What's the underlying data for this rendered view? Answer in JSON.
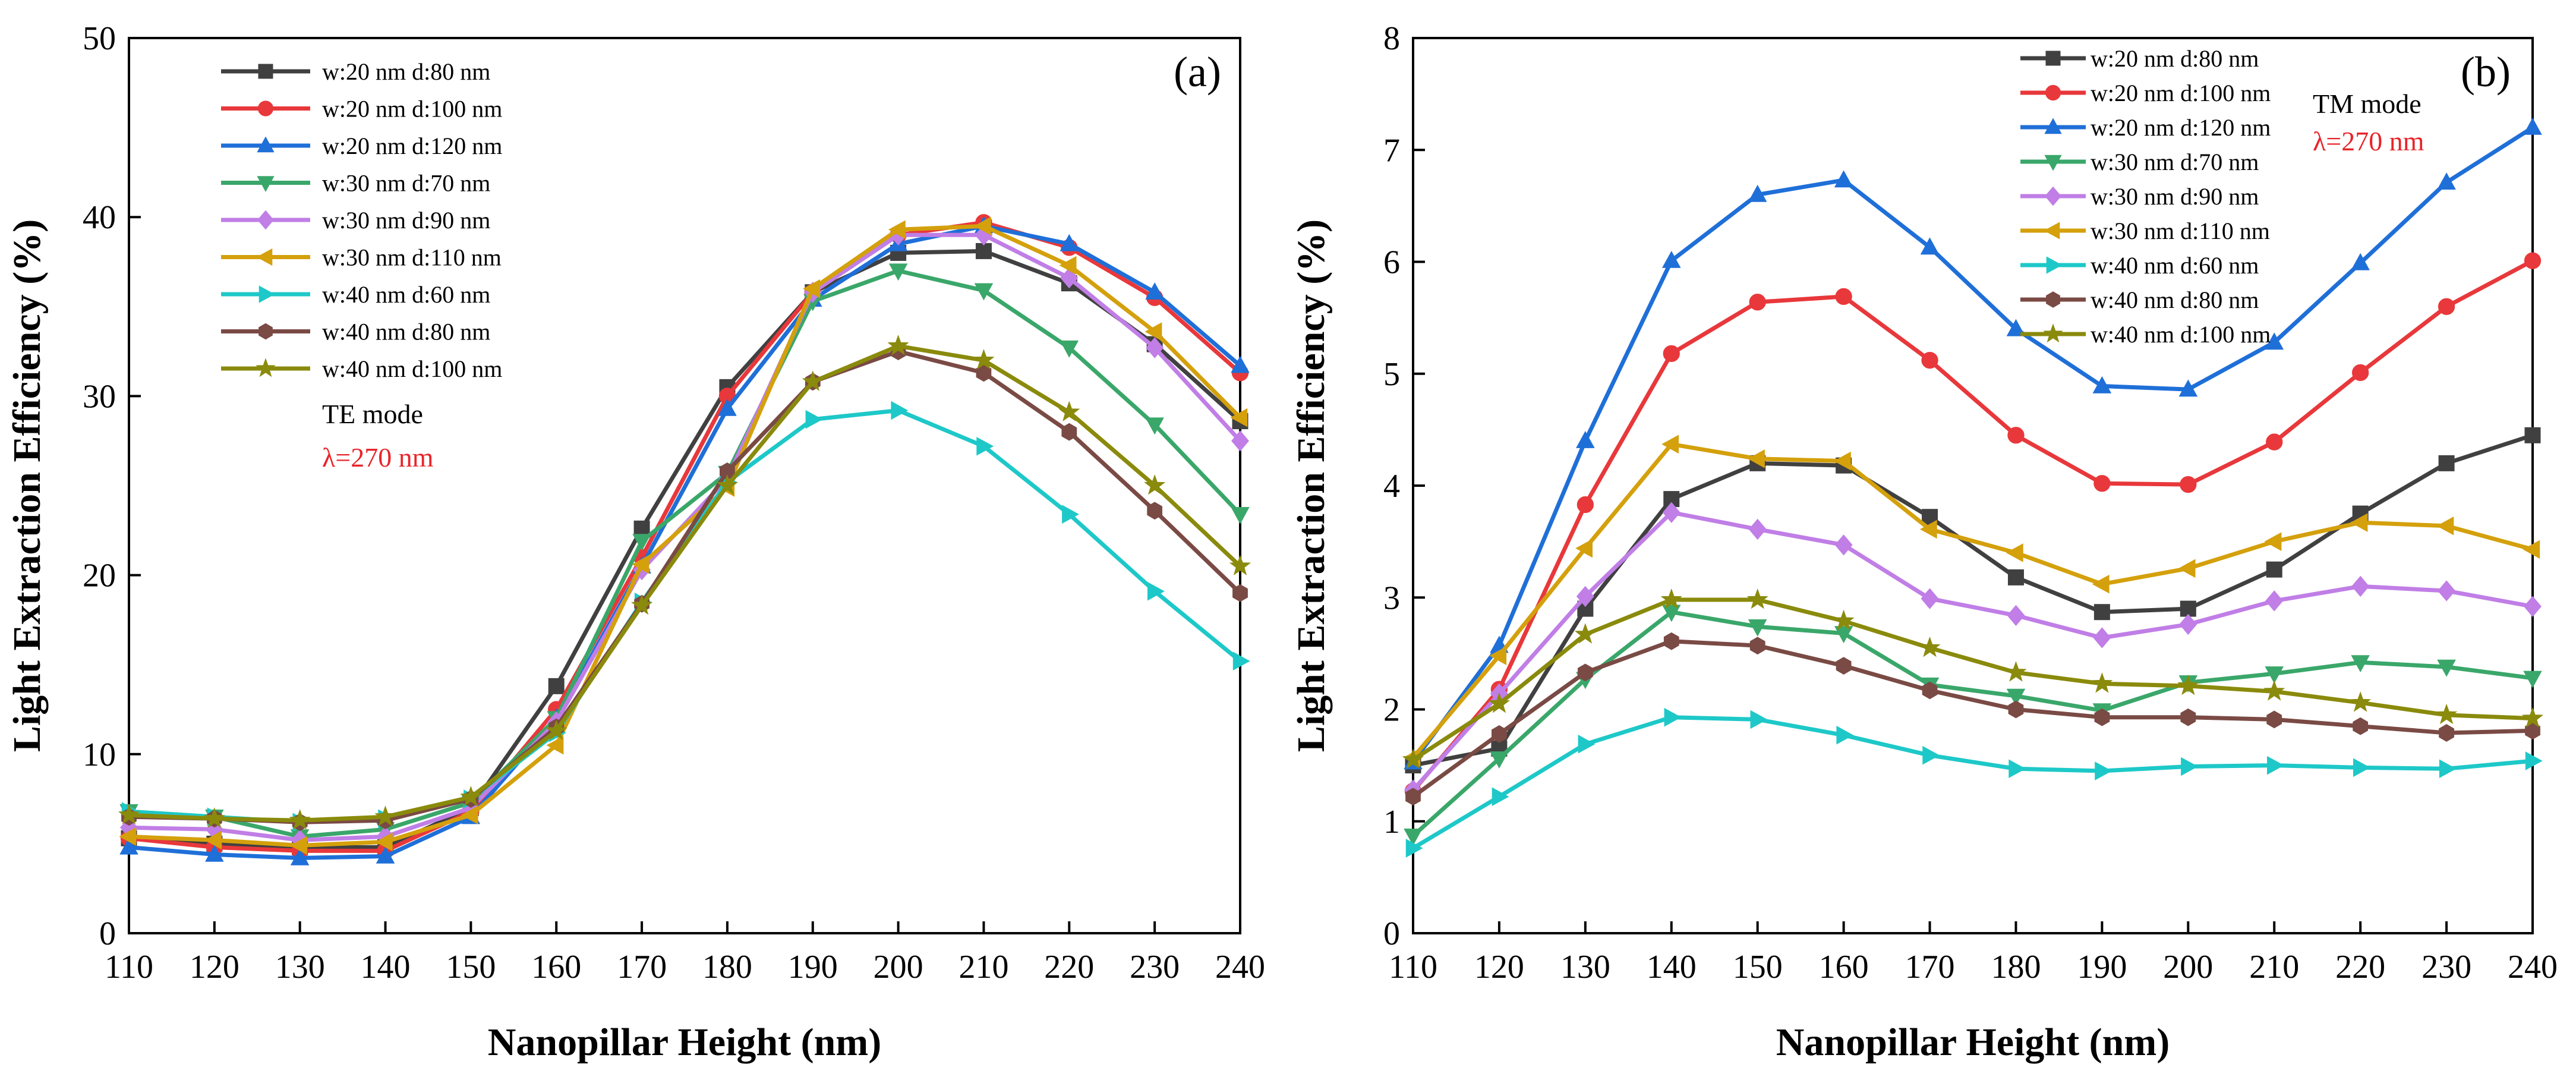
{
  "chart_data": [
    {
      "type": "line",
      "panel_label": "(a)",
      "xlabel": "Nanopillar Height (nm)",
      "ylabel": "Light Extraction Efficiency (%)",
      "xlim": [
        110,
        240
      ],
      "ylim": [
        0,
        50
      ],
      "x": [
        110,
        120,
        130,
        140,
        150,
        160,
        170,
        180,
        190,
        200,
        210,
        220,
        230,
        240
      ],
      "y_ticks": [
        0,
        10,
        20,
        30,
        40,
        50
      ],
      "annotation_mode": "TE mode",
      "annotation_wavelength": "λ=270 nm",
      "series": [
        {
          "name": "w:20 nm d:80 nm",
          "color": "#404040",
          "marker": "square",
          "values": [
            5.3,
            5.0,
            4.8,
            4.8,
            7.0,
            13.8,
            22.6,
            30.5,
            35.8,
            38.0,
            38.1,
            36.3,
            32.9,
            28.6
          ]
        },
        {
          "name": "w:20 nm d:100 nm",
          "color": "#e8383b",
          "marker": "circle",
          "values": [
            5.3,
            4.8,
            4.6,
            4.6,
            6.8,
            12.5,
            21.0,
            30.0,
            35.8,
            39.0,
            39.7,
            38.3,
            35.5,
            31.3
          ]
        },
        {
          "name": "w:20 nm d:120 nm",
          "color": "#1f6fd8",
          "marker": "triangle-up",
          "values": [
            4.8,
            4.4,
            4.2,
            4.3,
            6.5,
            12.0,
            20.5,
            29.3,
            35.4,
            38.5,
            39.5,
            38.5,
            35.8,
            31.7
          ]
        },
        {
          "name": "w:30 nm d:70 nm",
          "color": "#3aa76a",
          "marker": "triangle-down",
          "values": [
            6.8,
            6.5,
            5.4,
            5.8,
            7.3,
            12.0,
            21.9,
            25.7,
            35.3,
            37.0,
            35.9,
            32.7,
            28.4,
            23.4
          ]
        },
        {
          "name": "w:30 nm d:90 nm",
          "color": "#c07ee6",
          "marker": "diamond",
          "values": [
            5.9,
            5.8,
            5.2,
            5.4,
            7.0,
            11.8,
            20.3,
            25.4,
            35.8,
            39.0,
            39.0,
            36.6,
            32.7,
            27.5
          ]
        },
        {
          "name": "w:30 nm d:110 nm",
          "color": "#d4a00c",
          "marker": "triangle-left",
          "values": [
            5.4,
            5.2,
            4.9,
            5.1,
            6.6,
            10.5,
            20.6,
            24.9,
            36.0,
            39.3,
            39.5,
            37.3,
            33.6,
            28.8
          ]
        },
        {
          "name": "w:40 nm d:60 nm",
          "color": "#1ec8c8",
          "marker": "triangle-right",
          "values": [
            6.8,
            6.5,
            6.2,
            6.4,
            7.5,
            11.2,
            18.5,
            25.2,
            28.7,
            29.2,
            27.2,
            23.4,
            19.1,
            15.2
          ]
        },
        {
          "name": "w:40 nm d:80 nm",
          "color": "#7a4a44",
          "marker": "hexagon",
          "values": [
            6.5,
            6.4,
            6.2,
            6.3,
            7.5,
            11.5,
            18.4,
            25.8,
            30.8,
            32.5,
            31.3,
            28.0,
            23.6,
            19.0
          ]
        },
        {
          "name": "w:40 nm d:100 nm",
          "color": "#8a8a0c",
          "marker": "star",
          "values": [
            6.6,
            6.4,
            6.3,
            6.5,
            7.6,
            11.3,
            18.3,
            25.0,
            30.8,
            32.8,
            32.0,
            29.1,
            25.0,
            20.5
          ]
        }
      ]
    },
    {
      "type": "line",
      "panel_label": "(b)",
      "xlabel": "Nanopillar Height (nm)",
      "ylabel": "Light Extraction Efficiency (%)",
      "xlim": [
        110,
        240
      ],
      "ylim": [
        0,
        8
      ],
      "x": [
        110,
        120,
        130,
        140,
        150,
        160,
        170,
        180,
        190,
        200,
        210,
        220,
        230,
        240
      ],
      "y_ticks": [
        0,
        1,
        2,
        3,
        4,
        5,
        6,
        7,
        8
      ],
      "annotation_mode": "TM mode",
      "annotation_wavelength": "λ=270 nm",
      "series": [
        {
          "name": "w:20 nm d:80 nm",
          "color": "#404040",
          "marker": "square",
          "values": [
            1.5,
            1.65,
            2.9,
            3.88,
            4.2,
            4.18,
            3.72,
            3.18,
            2.87,
            2.9,
            3.25,
            3.75,
            4.2,
            4.45
          ]
        },
        {
          "name": "w:20 nm d:100 nm",
          "color": "#e8383b",
          "marker": "circle",
          "values": [
            1.27,
            2.18,
            3.83,
            5.18,
            5.64,
            5.69,
            5.12,
            4.45,
            4.02,
            4.01,
            4.39,
            5.01,
            5.6,
            6.01
          ]
        },
        {
          "name": "w:20 nm d:120 nm",
          "color": "#1f6fd8",
          "marker": "triangle-up",
          "values": [
            1.53,
            2.57,
            4.4,
            6.01,
            6.6,
            6.73,
            6.13,
            5.4,
            4.89,
            4.86,
            5.28,
            5.99,
            6.71,
            7.2
          ]
        },
        {
          "name": "w:30 nm d:70 nm",
          "color": "#3aa76a",
          "marker": "triangle-down",
          "values": [
            0.87,
            1.56,
            2.27,
            2.87,
            2.74,
            2.68,
            2.22,
            2.12,
            1.99,
            2.24,
            2.32,
            2.42,
            2.38,
            2.28
          ]
        },
        {
          "name": "w:30 nm d:90 nm",
          "color": "#c07ee6",
          "marker": "diamond",
          "values": [
            1.28,
            2.14,
            3.01,
            3.76,
            3.61,
            3.47,
            2.99,
            2.84,
            2.64,
            2.76,
            2.97,
            3.1,
            3.06,
            2.92
          ]
        },
        {
          "name": "w:30 nm d:110 nm",
          "color": "#d4a00c",
          "marker": "triangle-left",
          "values": [
            1.57,
            2.48,
            3.44,
            4.37,
            4.24,
            4.22,
            3.61,
            3.4,
            3.12,
            3.26,
            3.5,
            3.67,
            3.64,
            3.43
          ]
        },
        {
          "name": "w:40 nm d:60 nm",
          "color": "#1ec8c8",
          "marker": "triangle-right",
          "values": [
            0.76,
            1.22,
            1.69,
            1.93,
            1.91,
            1.77,
            1.59,
            1.47,
            1.45,
            1.49,
            1.5,
            1.48,
            1.47,
            1.54
          ]
        },
        {
          "name": "w:40 nm d:80 nm",
          "color": "#7a4a44",
          "marker": "hexagon",
          "values": [
            1.22,
            1.78,
            2.33,
            2.61,
            2.57,
            2.39,
            2.17,
            2.0,
            1.93,
            1.93,
            1.91,
            1.85,
            1.79,
            1.81
          ]
        },
        {
          "name": "w:40 nm d:100 nm",
          "color": "#8a8a0c",
          "marker": "star",
          "values": [
            1.55,
            2.05,
            2.67,
            2.98,
            2.98,
            2.79,
            2.55,
            2.33,
            2.23,
            2.21,
            2.16,
            2.06,
            1.95,
            1.92
          ]
        }
      ]
    }
  ]
}
